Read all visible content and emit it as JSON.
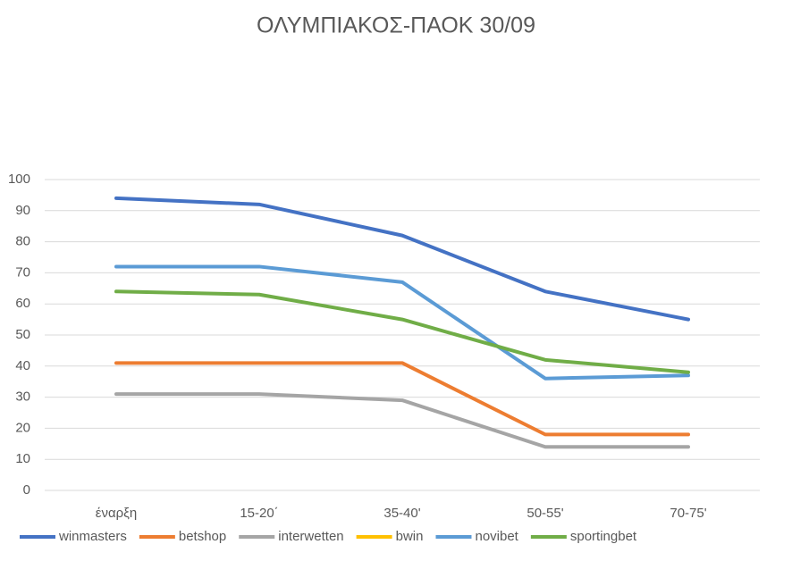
{
  "chart_data": {
    "type": "line",
    "title": "ΟΛΥΜΠΙΑΚΟΣ-ΠΑΟΚ 30/09",
    "categories": [
      "έναρξη",
      "15-20΄",
      "35-40'",
      "50-55'",
      "70-75'"
    ],
    "series": [
      {
        "name": "winmasters",
        "color": "#4472c4",
        "values": [
          94,
          92,
          82,
          64,
          55
        ]
      },
      {
        "name": "betshop",
        "color": "#ed7d31",
        "values": [
          41,
          41,
          41,
          18,
          18
        ]
      },
      {
        "name": "interwetten",
        "color": "#a5a5a5",
        "values": [
          31,
          31,
          29,
          14,
          14
        ]
      },
      {
        "name": "bwin",
        "color": "#ffc000",
        "values": [
          null,
          null,
          null,
          null,
          null
        ]
      },
      {
        "name": "novibet",
        "color": "#5b9bd5",
        "values": [
          72,
          72,
          67,
          36,
          37
        ]
      },
      {
        "name": "sportingbet",
        "color": "#70ad47",
        "values": [
          64,
          63,
          55,
          42,
          38
        ]
      }
    ],
    "ylim": [
      0,
      100
    ],
    "yticks": [
      0,
      10,
      20,
      30,
      40,
      50,
      60,
      70,
      80,
      90,
      100
    ],
    "grid": true,
    "legend": "bottom"
  }
}
